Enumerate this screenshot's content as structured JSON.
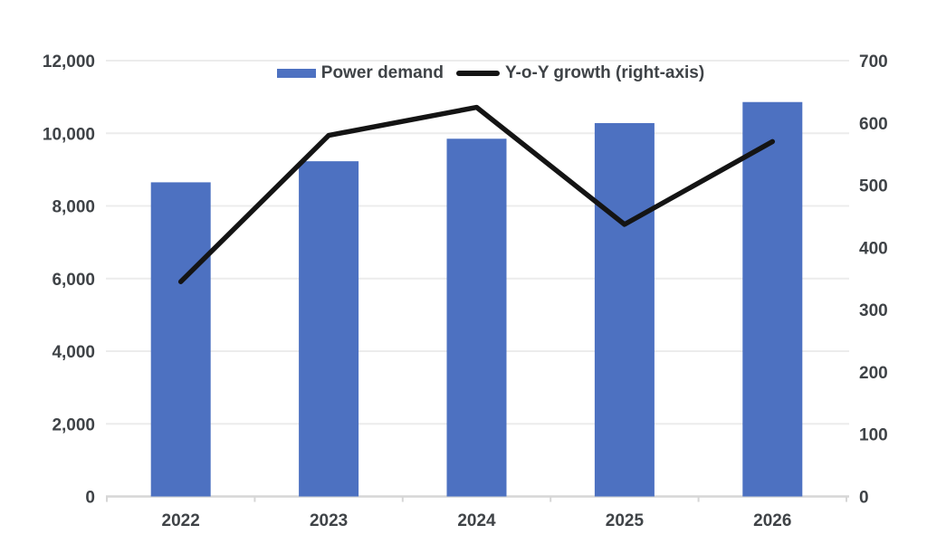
{
  "colors": {
    "bar_fill": "#4d71c1",
    "line_stroke": "#141414",
    "grid_line": "#ececec",
    "axis_line": "#d6d6d6",
    "tick_line": "#d6d6d6",
    "tick_label": "#3f4347",
    "background": "#ffffff"
  },
  "legend": {
    "items": [
      {
        "label": "Power demand",
        "swatch": "bar"
      },
      {
        "label": "Y-o-Y growth (right-axis)",
        "swatch": "line"
      }
    ]
  },
  "chart_data": {
    "type": "combo",
    "categories": [
      "2022",
      "2023",
      "2024",
      "2025",
      "2026"
    ],
    "series": [
      {
        "name": "Power demand",
        "type": "bar",
        "axis": "left",
        "values": [
          8650,
          9230,
          9850,
          10280,
          10860
        ]
      },
      {
        "name": "Y-o-Y growth (right-axis)",
        "type": "line",
        "axis": "right",
        "values": [
          345,
          580,
          625,
          437,
          570
        ]
      }
    ],
    "left_axis": {
      "min": 0,
      "max": 12000,
      "step": 2000,
      "tick_labels": [
        "0",
        "2,000",
        "4,000",
        "6,000",
        "8,000",
        "10,000",
        "12,000"
      ]
    },
    "right_axis": {
      "min": 0,
      "max": 700,
      "step": 100,
      "tick_labels": [
        "0",
        "100",
        "200",
        "300",
        "400",
        "500",
        "600",
        "700"
      ]
    },
    "grid": true,
    "legend_position": "top-center"
  }
}
